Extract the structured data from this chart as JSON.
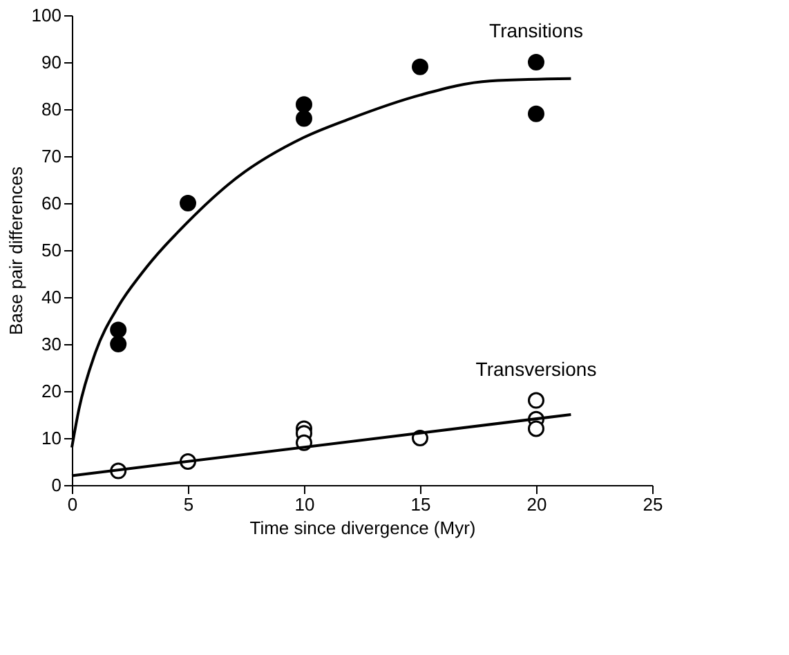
{
  "chart_data": {
    "type": "scatter",
    "xlabel": "Time since divergence (Myr)",
    "ylabel": "Base pair differences",
    "xlim": [
      0,
      25
    ],
    "xticks": [
      0,
      5,
      10,
      15,
      20,
      25
    ],
    "ylim": [
      0,
      100
    ],
    "yticks": [
      0,
      10,
      20,
      30,
      40,
      50,
      60,
      70,
      80,
      90,
      100
    ],
    "grid": false,
    "marker": "circle",
    "series": [
      {
        "name": "Transitions",
        "color": "#000000",
        "x": [
          2,
          2,
          5,
          10,
          10,
          15,
          20,
          20
        ],
        "values": [
          33,
          30,
          60,
          81,
          78,
          89,
          90,
          79
        ]
      },
      {
        "name": "Transversions",
        "color": "#ffffff",
        "x": [
          2,
          5,
          10,
          10,
          10,
          15,
          20,
          20,
          20
        ],
        "values": [
          3,
          5,
          12,
          11,
          9,
          10,
          18,
          14,
          12
        ]
      },
      {
        "type": "line",
        "marker": "none",
        "color": "#000000",
        "line_style": "solid",
        "x": [
          0,
          0.3,
          1,
          2,
          3,
          5,
          7,
          10,
          12,
          15,
          18,
          21.5
        ],
        "values": [
          8,
          16,
          28,
          38,
          45,
          56,
          65,
          74,
          78,
          83,
          86,
          86.5
        ]
      },
      {
        "type": "line",
        "marker": "none",
        "color": "#000000",
        "line_style": "solid",
        "x": [
          0,
          21.5
        ],
        "values": [
          2,
          15
        ]
      }
    ]
  }
}
